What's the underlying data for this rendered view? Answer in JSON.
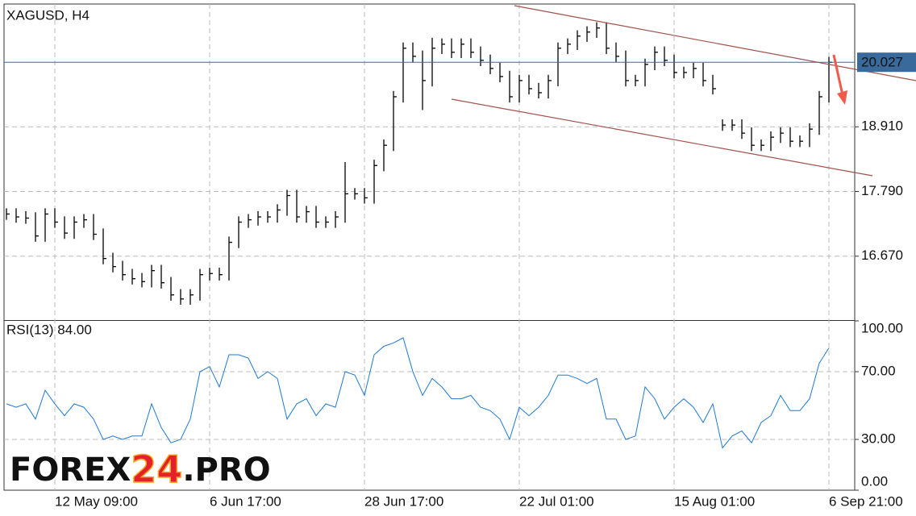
{
  "chart_data": [
    {
      "type": "ohlc",
      "title": "XAGUSD, H4",
      "color": "#000000",
      "categories": [
        null,
        null,
        null,
        null,
        null,
        "12 May 09:00",
        null,
        null,
        null,
        null,
        null,
        null,
        null,
        null,
        null,
        null,
        null,
        null,
        null,
        null,
        null,
        "6 Jun 17:00",
        null,
        null,
        null,
        null,
        null,
        null,
        null,
        null,
        null,
        null,
        null,
        null,
        null,
        null,
        null,
        "28 Jun 17:00",
        null,
        null,
        null,
        null,
        null,
        null,
        null,
        null,
        null,
        null,
        null,
        null,
        null,
        null,
        null,
        "22 Jul 01:00",
        null,
        null,
        null,
        null,
        null,
        null,
        null,
        null,
        null,
        null,
        null,
        null,
        null,
        null,
        null,
        "15 Aug 01:00",
        null,
        null,
        null,
        null,
        null,
        null,
        null,
        null,
        null,
        null,
        null,
        null,
        null,
        null,
        null,
        "6 Sep 21:00"
      ],
      "high": [
        17.5,
        17.5,
        17.45,
        17.43,
        17.5,
        17.5,
        17.36,
        17.36,
        17.4,
        17.4,
        17.15,
        16.73,
        16.59,
        16.45,
        16.38,
        16.52,
        16.52,
        16.31,
        16.1,
        16.1,
        16.45,
        16.47,
        16.47,
        17.01,
        17.36,
        17.4,
        17.45,
        17.45,
        17.57,
        17.82,
        17.82,
        17.54,
        17.54,
        17.36,
        17.45,
        18.3,
        17.85,
        17.85,
        18.34,
        18.69,
        19.53,
        20.37,
        20.37,
        20.23,
        20.45,
        20.44,
        20.44,
        20.44,
        20.44,
        20.3,
        20.16,
        20.02,
        19.88,
        19.81,
        19.81,
        19.67,
        19.81,
        20.37,
        20.44,
        20.58,
        20.65,
        20.72,
        20.72,
        20.37,
        20.23,
        19.81,
        20.09,
        20.3,
        20.3,
        20.16,
        19.95,
        20.02,
        20.02,
        19.81,
        19.04,
        19.04,
        19.04,
        18.9,
        18.69,
        18.83,
        18.9,
        18.9,
        18.76,
        18.97,
        19.53,
        20.12
      ],
      "low": [
        17.3,
        17.25,
        17.23,
        16.92,
        16.92,
        17.16,
        16.97,
        16.97,
        17.16,
        16.95,
        16.53,
        16.39,
        16.25,
        16.18,
        16.13,
        16.13,
        16.11,
        15.9,
        15.83,
        15.83,
        15.9,
        16.25,
        16.25,
        16.25,
        16.81,
        17.16,
        17.2,
        17.25,
        17.25,
        17.37,
        17.25,
        17.25,
        17.16,
        17.16,
        17.16,
        17.25,
        17.65,
        17.58,
        17.58,
        18.14,
        18.49,
        19.33,
        20.03,
        19.2,
        19.61,
        20.17,
        20.1,
        20.1,
        20.1,
        19.96,
        19.82,
        19.68,
        19.33,
        19.33,
        19.47,
        19.4,
        19.4,
        19.61,
        20.17,
        20.24,
        20.38,
        20.45,
        20.17,
        20.03,
        19.61,
        19.61,
        19.61,
        19.89,
        19.96,
        19.75,
        19.75,
        19.75,
        19.61,
        19.47,
        18.84,
        18.84,
        18.7,
        18.49,
        18.49,
        18.49,
        18.63,
        18.56,
        18.56,
        18.56,
        18.77,
        19.33
      ],
      "close": [
        17.4,
        17.35,
        17.33,
        17.02,
        17.4,
        17.26,
        17.07,
        17.26,
        17.3,
        17.05,
        16.63,
        16.49,
        16.35,
        16.28,
        16.23,
        16.42,
        16.21,
        16.0,
        15.93,
        16.0,
        16.35,
        16.37,
        16.35,
        16.91,
        17.26,
        17.3,
        17.35,
        17.35,
        17.47,
        17.72,
        17.35,
        17.44,
        17.26,
        17.26,
        17.35,
        17.75,
        17.75,
        17.68,
        18.24,
        18.59,
        19.43,
        20.27,
        20.13,
        19.71,
        20.27,
        20.34,
        20.2,
        20.34,
        20.2,
        20.06,
        19.92,
        19.78,
        19.43,
        19.71,
        19.57,
        19.5,
        19.71,
        20.27,
        20.34,
        20.48,
        20.55,
        20.62,
        20.27,
        20.13,
        19.71,
        19.71,
        19.99,
        20.2,
        20.06,
        19.85,
        19.85,
        19.92,
        19.71,
        19.57,
        18.94,
        18.94,
        18.8,
        18.59,
        18.59,
        18.73,
        18.8,
        18.66,
        18.66,
        18.87,
        19.43,
        20.027
      ],
      "current_price": 20.027,
      "current_price_color": "#3a6a9c",
      "ylim": [
        15.564,
        21.035
      ],
      "yticks": [
        {
          "value": 16.67,
          "label": "16.670"
        },
        {
          "value": 17.79,
          "label": "17.790"
        },
        {
          "value": 18.91,
          "label": "18.910"
        }
      ],
      "grid": true
    },
    {
      "type": "line",
      "title": "RSI(13) 84.00",
      "color": "#1f78d0",
      "values": [
        51,
        49,
        51,
        42,
        59,
        51,
        44,
        51,
        49,
        42,
        30,
        32,
        30,
        32,
        32,
        51,
        37,
        28,
        30,
        42,
        70,
        73,
        61,
        80,
        80,
        78,
        66,
        70,
        66,
        42,
        51,
        54,
        44,
        51,
        49,
        70,
        68,
        56,
        80,
        85,
        87,
        90,
        70,
        56,
        66,
        61,
        54,
        54,
        56,
        49,
        47,
        42,
        30,
        49,
        44,
        49,
        56,
        68,
        68,
        66,
        63,
        66,
        42,
        42,
        30,
        32,
        61,
        54,
        42,
        49,
        54,
        49,
        40,
        51,
        25,
        32,
        35,
        28,
        40,
        44,
        56,
        47,
        47,
        54,
        75,
        84
      ],
      "ylim": [
        0,
        100
      ],
      "yticks": [
        {
          "value": 0,
          "label": "0.00"
        },
        {
          "value": 30,
          "label": "30.00"
        },
        {
          "value": 70,
          "label": "70.00"
        },
        {
          "value": 100,
          "label": "100.00"
        }
      ],
      "grid": true
    }
  ],
  "watermark": {
    "parts": [
      "FOREX",
      "24",
      ".PRO"
    ]
  }
}
